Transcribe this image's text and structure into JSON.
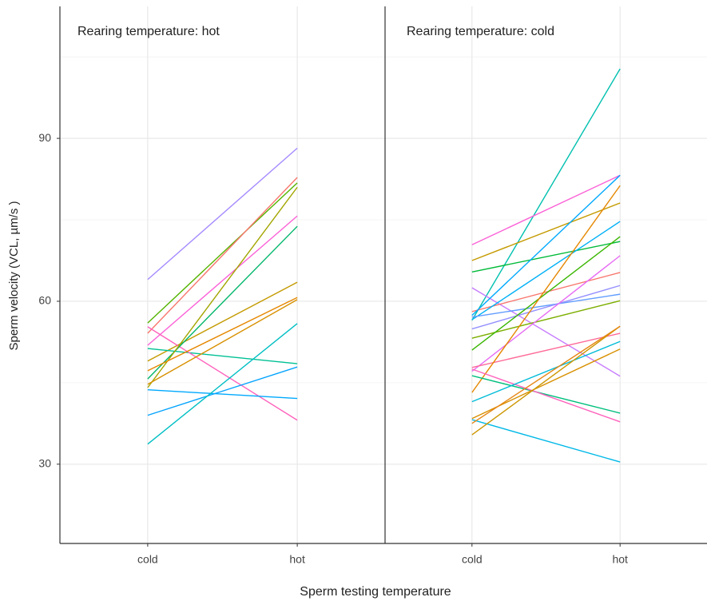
{
  "chart_data": {
    "type": "line",
    "y_label": "Sperm velocity (VCL, µm/s )",
    "x_label": "Sperm testing temperature",
    "categories": [
      "cold",
      "hot"
    ],
    "ylim": [
      15.4,
      114.3
    ],
    "yticks": [
      30,
      60,
      90
    ],
    "minor_yticks": [
      45,
      75,
      105
    ],
    "grid": true,
    "facets": [
      {
        "title": "Rearing temperature: hot",
        "series": [
          {
            "color": "#a58aff",
            "values": [
              64.0,
              88.2
            ]
          },
          {
            "color": "#53b400",
            "values": [
              56.0,
              81.8
            ]
          },
          {
            "color": "#f8766d",
            "values": [
              54.1,
              82.8
            ]
          },
          {
            "color": "#fb61d7",
            "values": [
              51.9,
              75.7
            ]
          },
          {
            "color": "#c49a00",
            "values": [
              49.0,
              63.5
            ]
          },
          {
            "color": "#00c094",
            "values": [
              51.3,
              48.5
            ]
          },
          {
            "color": "#ff62bc",
            "values": [
              55.3,
              38.1
            ]
          },
          {
            "color": "#00b66a",
            "values": [
              45.7,
              73.8
            ]
          },
          {
            "color": "#a3a500",
            "values": [
              44.1,
              81.0
            ]
          },
          {
            "color": "#e58700",
            "values": [
              47.2,
              60.7
            ]
          },
          {
            "color": "#d89000",
            "values": [
              44.7,
              60.3
            ]
          },
          {
            "color": "#00a9ff",
            "values": [
              43.7,
              42.1
            ]
          },
          {
            "color": "#06a4ff",
            "values": [
              39.0,
              47.9
            ]
          },
          {
            "color": "#00bfc4",
            "values": [
              33.7,
              55.9
            ]
          }
        ]
      },
      {
        "title": "Rearing temperature: cold",
        "series": [
          {
            "color": "#00c0af",
            "values": [
              56.5,
              102.8
            ]
          },
          {
            "color": "#fb61d7",
            "values": [
              70.4,
              83.2
            ]
          },
          {
            "color": "#c49a00",
            "values": [
              67.5,
              78.1
            ]
          },
          {
            "color": "#00ba38",
            "values": [
              65.4,
              71.0
            ]
          },
          {
            "color": "#c77cff",
            "values": [
              62.5,
              46.2
            ]
          },
          {
            "color": "#f8766d",
            "values": [
              58.1,
              65.3
            ]
          },
          {
            "color": "#00a9ff",
            "values": [
              57.4,
              83.2
            ]
          },
          {
            "color": "#00b0f6",
            "values": [
              56.6,
              74.7
            ]
          },
          {
            "color": "#619cff",
            "values": [
              57.1,
              61.3
            ]
          },
          {
            "color": "#9590ff",
            "values": [
              54.9,
              62.9
            ]
          },
          {
            "color": "#7cae00",
            "values": [
              53.2,
              60.1
            ]
          },
          {
            "color": "#39b600",
            "values": [
              51.0,
              71.9
            ]
          },
          {
            "color": "#e76bf3",
            "values": [
              47.1,
              68.4
            ]
          },
          {
            "color": "#ff6a98",
            "values": [
              47.8,
              54.1
            ]
          },
          {
            "color": "#e58700",
            "values": [
              43.2,
              81.3
            ]
          },
          {
            "color": "#00bf7d",
            "values": [
              46.3,
              39.4
            ]
          },
          {
            "color": "#ff62bc",
            "values": [
              47.5,
              37.8
            ]
          },
          {
            "color": "#00bcd8",
            "values": [
              41.5,
              52.6
            ]
          },
          {
            "color": "#00b8e7",
            "values": [
              38.2,
              30.4
            ]
          },
          {
            "color": "#d89000",
            "values": [
              38.4,
              51.2
            ]
          },
          {
            "color": "#cd9600",
            "values": [
              35.4,
              55.4
            ]
          },
          {
            "color": "#e68613",
            "values": [
              37.5,
              55.4
            ]
          }
        ]
      }
    ]
  }
}
